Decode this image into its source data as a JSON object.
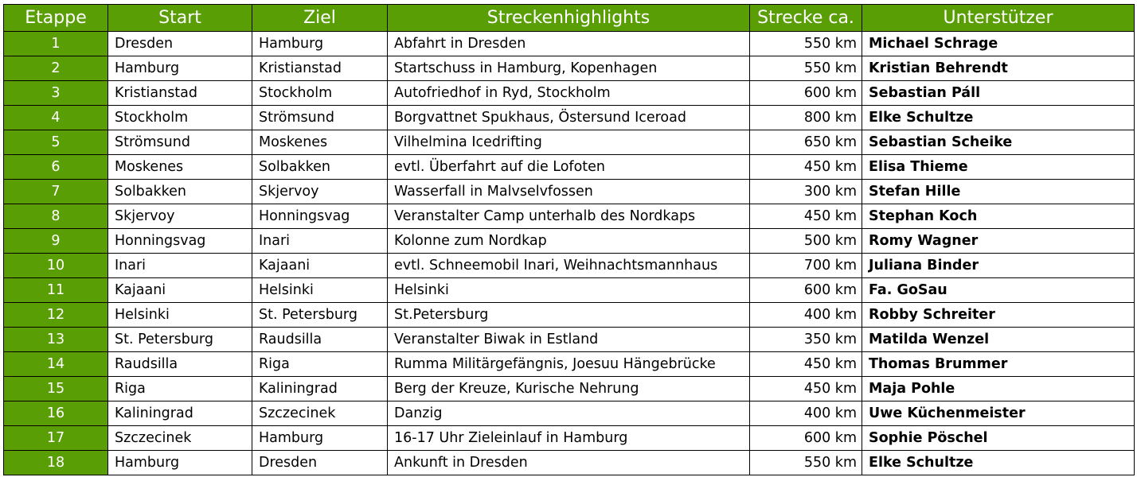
{
  "columns": {
    "stage": "Etappe",
    "start": "Start",
    "ziel": "Ziel",
    "highlights": "Streckenhighlights",
    "distance": "Strecke ca.",
    "supporter": "Unterstützer"
  },
  "rows": [
    {
      "stage": "1",
      "start": "Dresden",
      "ziel": "Hamburg",
      "highlights": "Abfahrt in Dresden",
      "distance": "550 km",
      "supporter": "Michael Schrage"
    },
    {
      "stage": "2",
      "start": "Hamburg",
      "ziel": "Kristianstad",
      "highlights": "Startschuss in Hamburg, Kopenhagen",
      "distance": "550 km",
      "supporter": "Kristian Behrendt"
    },
    {
      "stage": "3",
      "start": "Kristianstad",
      "ziel": "Stockholm",
      "highlights": "Autofriedhof in Ryd, Stockholm",
      "distance": "600 km",
      "supporter": "Sebastian Páll"
    },
    {
      "stage": "4",
      "start": "Stockholm",
      "ziel": "Strömsund",
      "highlights": "Borgvattnet Spukhaus, Östersund Iceroad",
      "distance": "800 km",
      "supporter": "Elke Schultze"
    },
    {
      "stage": "5",
      "start": "Strömsund",
      "ziel": "Moskenes",
      "highlights": "Vilhelmina Icedrifting",
      "distance": "650 km",
      "supporter": "Sebastian Scheike"
    },
    {
      "stage": "6",
      "start": "Moskenes",
      "ziel": "Solbakken",
      "highlights": "evtl. Überfahrt auf die Lofoten",
      "distance": "450 km",
      "supporter": "Elisa Thieme"
    },
    {
      "stage": "7",
      "start": "Solbakken",
      "ziel": "Skjervoy",
      "highlights": "Wasserfall in Malvselvfossen",
      "distance": "300 km",
      "supporter": "Stefan Hille"
    },
    {
      "stage": "8",
      "start": "Skjervoy",
      "ziel": "Honningsvag",
      "highlights": "Veranstalter Camp unterhalb des Nordkaps",
      "distance": "450 km",
      "supporter": "Stephan Koch"
    },
    {
      "stage": "9",
      "start": "Honningsvag",
      "ziel": "Inari",
      "highlights": "Kolonne zum Nordkap",
      "distance": "500 km",
      "supporter": "Romy Wagner"
    },
    {
      "stage": "10",
      "start": "Inari",
      "ziel": "Kajaani",
      "highlights": "evtl. Schneemobil Inari, Weihnachtsmannhaus",
      "distance": "700 km",
      "supporter": "Juliana Binder"
    },
    {
      "stage": "11",
      "start": "Kajaani",
      "ziel": "Helsinki",
      "highlights": "Helsinki",
      "distance": "600 km",
      "supporter": "Fa. GoSau"
    },
    {
      "stage": "12",
      "start": "Helsinki",
      "ziel": "St. Petersburg",
      "highlights": "St.Petersburg",
      "distance": "400 km",
      "supporter": "Robby Schreiter"
    },
    {
      "stage": "13",
      "start": "St. Petersburg",
      "ziel": "Raudsilla",
      "highlights": "Veranstalter Biwak in Estland",
      "distance": "350 km",
      "supporter": "Matilda Wenzel"
    },
    {
      "stage": "14",
      "start": "Raudsilla",
      "ziel": "Riga",
      "highlights": "Rumma Militärgefängnis, Joesuu Hängebrücke",
      "distance": "450 km",
      "supporter": "Thomas Brummer"
    },
    {
      "stage": "15",
      "start": "Riga",
      "ziel": "Kaliningrad",
      "highlights": "Berg der Kreuze, Kurische Nehrung",
      "distance": "450 km",
      "supporter": "Maja Pohle"
    },
    {
      "stage": "16",
      "start": "Kaliningrad",
      "ziel": "Szczecinek",
      "highlights": "Danzig",
      "distance": "400 km",
      "supporter": "Uwe Küchenmeister"
    },
    {
      "stage": "17",
      "start": "Szczecinek",
      "ziel": "Hamburg",
      "highlights": "16-17 Uhr Zieleinlauf in Hamburg",
      "distance": "600 km",
      "supporter": "Sophie Pöschel"
    },
    {
      "stage": "18",
      "start": "Hamburg",
      "ziel": "Dresden",
      "highlights": "Ankunft in Dresden",
      "distance": "550 km",
      "supporter": "Elke Schultze"
    }
  ],
  "colors": {
    "header_bg": "#5a9e06",
    "header_text": "#ffffff",
    "border": "#000000"
  }
}
